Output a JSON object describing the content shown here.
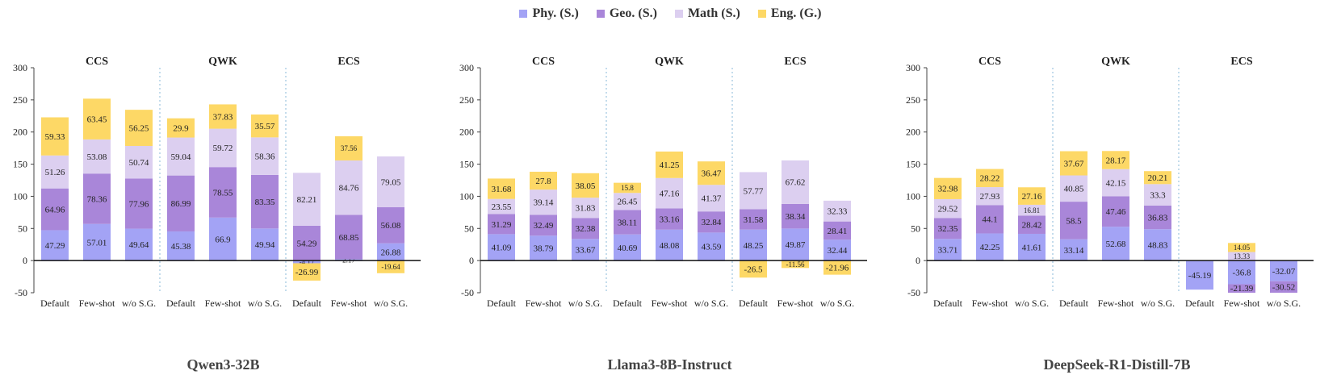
{
  "chart_data": {
    "type": "bar",
    "stacked": true,
    "legend": [
      {
        "name": "Phy. (S.)",
        "color": "#a3a3f5"
      },
      {
        "name": "Geo. (S.)",
        "color": "#a986d9"
      },
      {
        "name": "Math (S.)",
        "color": "#dccff0"
      },
      {
        "name": "Eng. (G.)",
        "color": "#fdd866"
      }
    ],
    "ylim": [
      -50,
      300
    ],
    "yticks": [
      -50,
      0,
      50,
      100,
      150,
      200,
      250,
      300
    ],
    "groups": [
      "CCS",
      "QWK",
      "ECS"
    ],
    "categories": [
      "Default",
      "Few-shot",
      "w/o S.G.",
      "Default",
      "Few-shot",
      "w/o S.G.",
      "Default",
      "Few-shot",
      "w/o S.G."
    ],
    "panels": [
      {
        "title": "Qwen3-32B",
        "series": [
          {
            "name": "Phy. (S.)",
            "values": [
              47.29,
              57.01,
              49.64,
              45.38,
              66.9,
              49.94,
              -4.17,
              2.17,
              26.88
            ]
          },
          {
            "name": "Geo. (S.)",
            "values": [
              64.96,
              78.36,
              77.96,
              86.99,
              78.55,
              83.35,
              54.29,
              68.85,
              56.08
            ]
          },
          {
            "name": "Math (S.)",
            "values": [
              51.26,
              53.08,
              50.74,
              59.04,
              59.72,
              58.36,
              82.21,
              84.76,
              79.05
            ]
          },
          {
            "name": "Eng. (G.)",
            "values": [
              59.33,
              63.45,
              56.25,
              29.9,
              37.83,
              35.57,
              -26.99,
              37.56,
              -19.64
            ]
          }
        ]
      },
      {
        "title": "Llama3-8B-Instruct",
        "series": [
          {
            "name": "Phy. (S.)",
            "values": [
              41.09,
              38.79,
              33.67,
              40.69,
              48.08,
              43.59,
              48.25,
              49.87,
              32.44
            ]
          },
          {
            "name": "Geo. (S.)",
            "values": [
              31.29,
              32.49,
              32.38,
              38.11,
              33.16,
              32.84,
              31.58,
              38.34,
              28.41
            ]
          },
          {
            "name": "Math (S.)",
            "values": [
              23.55,
              39.14,
              31.83,
              26.45,
              47.16,
              41.37,
              57.77,
              67.62,
              32.33
            ]
          },
          {
            "name": "Eng. (G.)",
            "values": [
              31.68,
              27.8,
              38.05,
              15.8,
              41.25,
              36.47,
              -26.5,
              -11.56,
              -21.96
            ]
          }
        ]
      },
      {
        "title": "DeepSeek-R1-Distill-7B",
        "series": [
          {
            "name": "Phy. (S.)",
            "values": [
              33.71,
              42.25,
              41.61,
              33.14,
              52.68,
              48.83,
              -45.19,
              -36.8,
              -32.07
            ]
          },
          {
            "name": "Geo. (S.)",
            "values": [
              32.35,
              44.1,
              28.42,
              58.5,
              47.46,
              36.83,
              0,
              -21.39,
              -30.52
            ]
          },
          {
            "name": "Math (S.)",
            "values": [
              29.52,
              27.93,
              16.81,
              40.85,
              42.15,
              33.3,
              0,
              13.33,
              0
            ]
          },
          {
            "name": "Eng. (G.)",
            "values": [
              32.98,
              28.22,
              27.16,
              37.67,
              28.17,
              20.21,
              0,
              14.05,
              0
            ]
          }
        ]
      }
    ]
  }
}
